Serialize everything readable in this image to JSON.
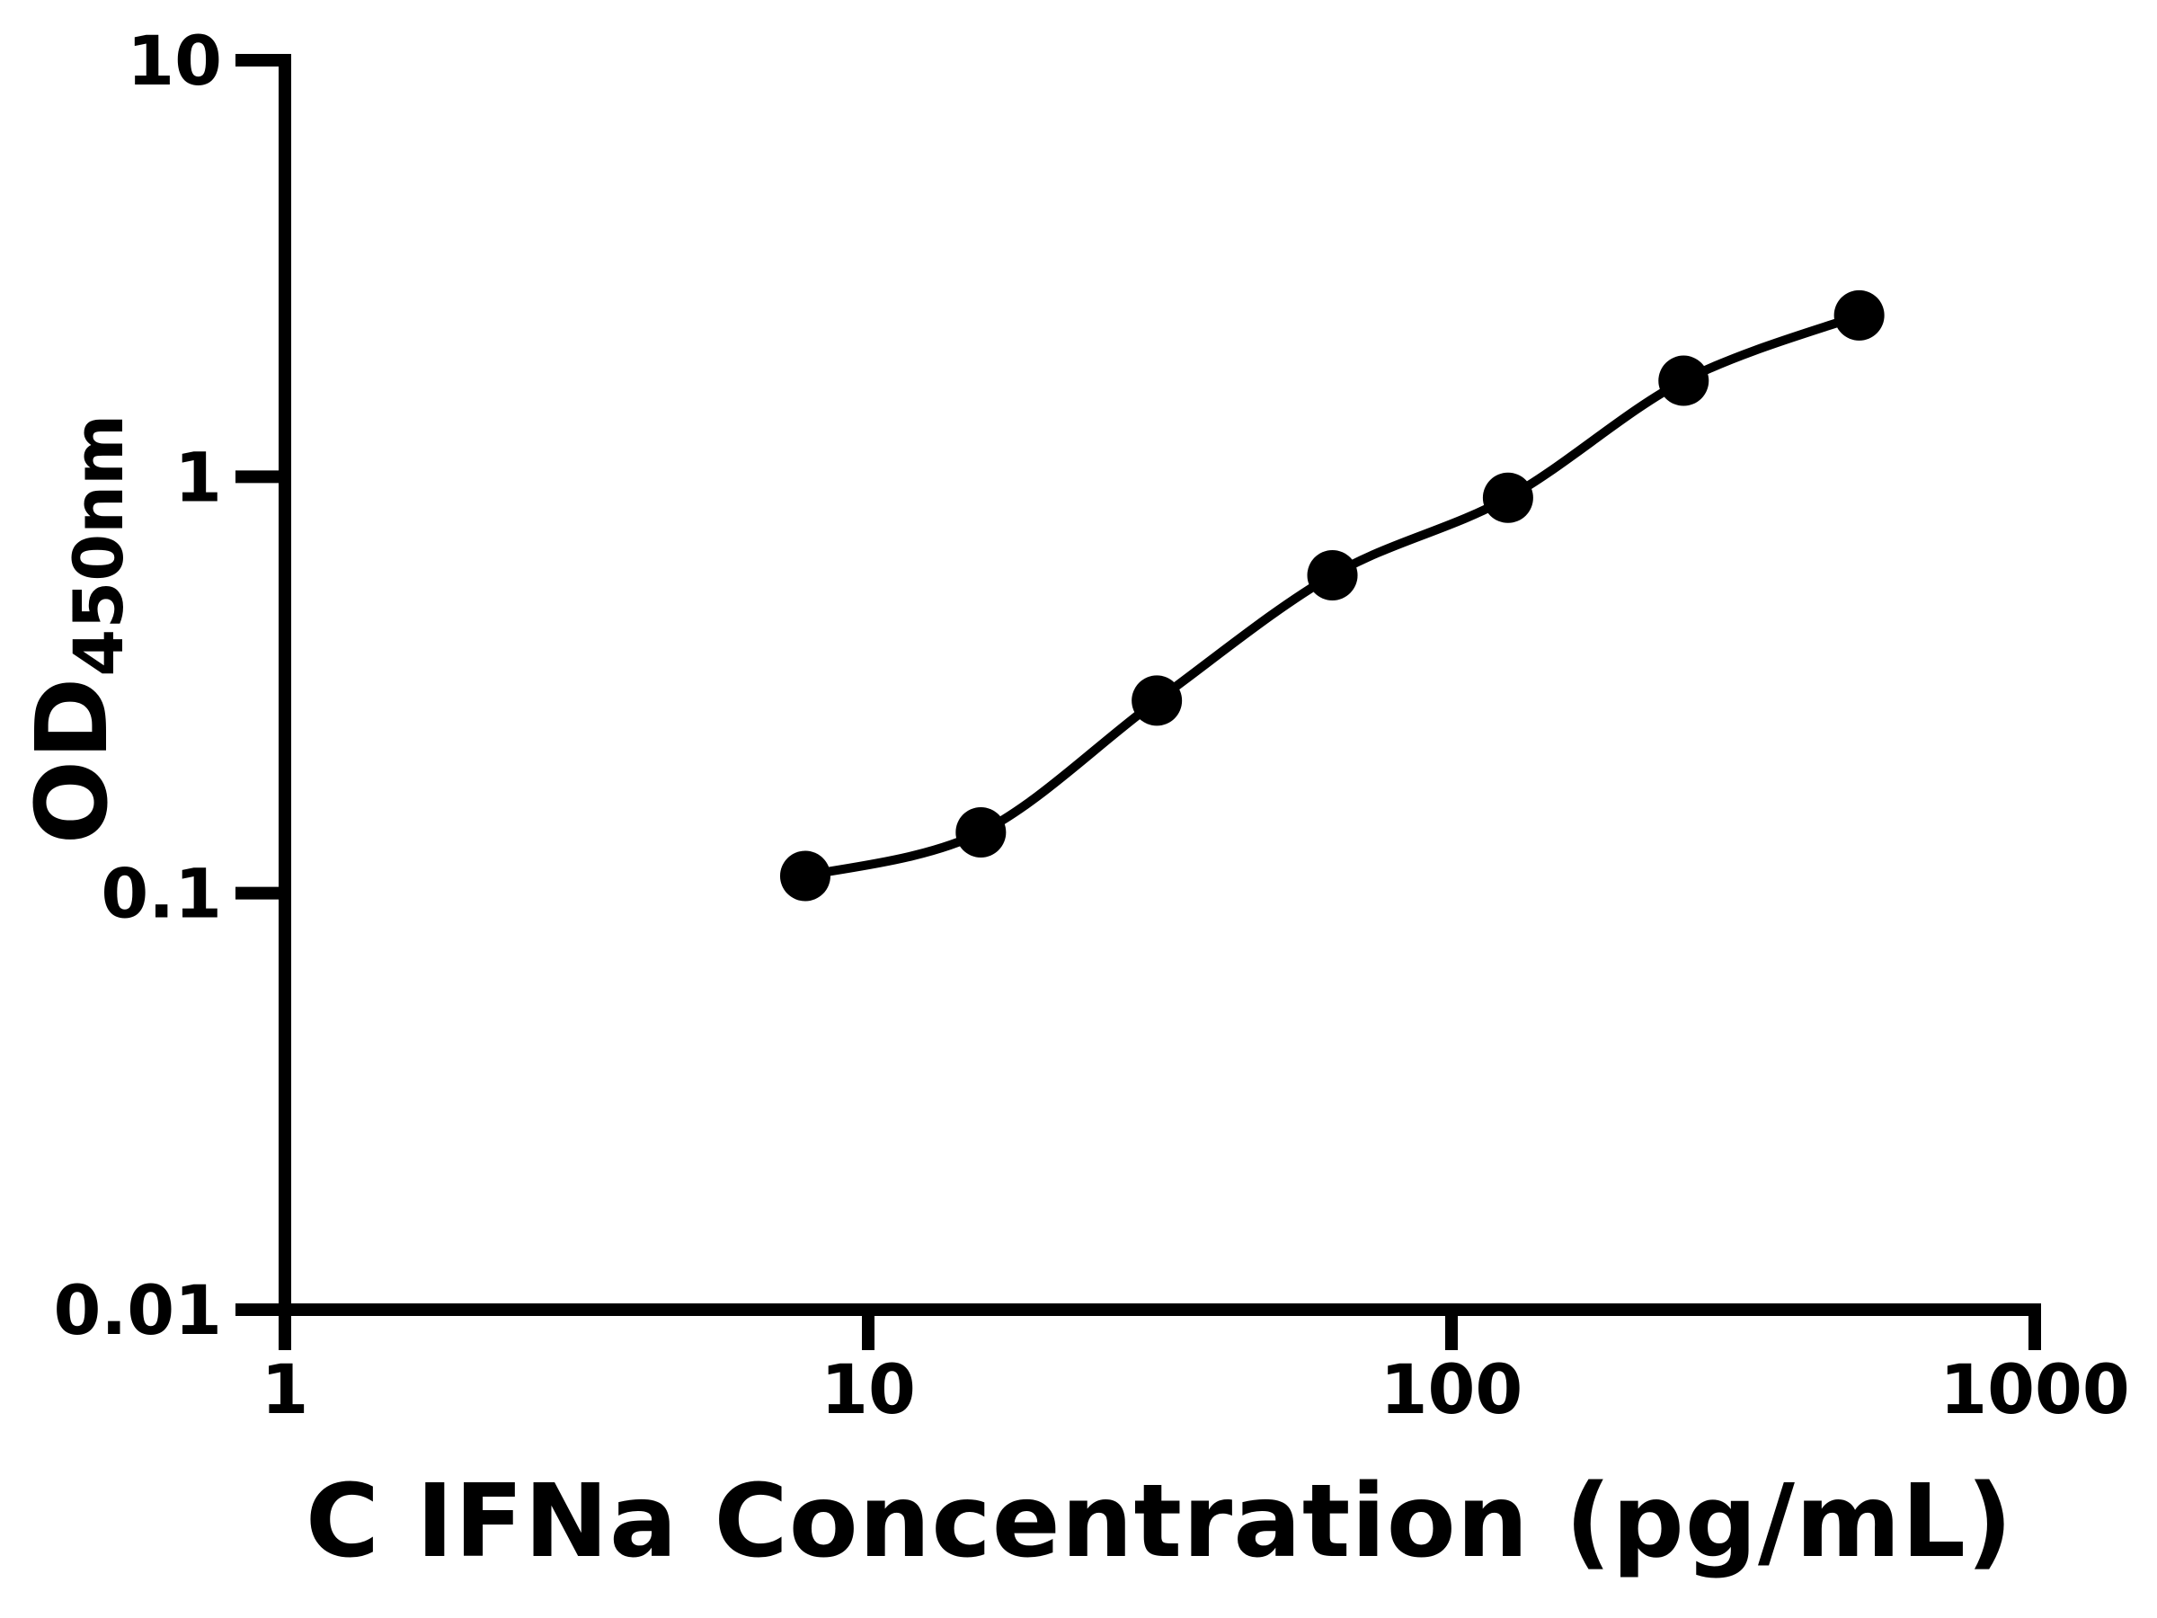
{
  "chart_data": {
    "type": "scatter",
    "subtype": "standard-curve-with-fitted-line",
    "title": "",
    "xlabel": "C IFNa Concentration (pg/mL)",
    "ylabel_main": "OD",
    "ylabel_sub": "450nm",
    "x_scale": "log",
    "y_scale": "log",
    "xlim": [
      1,
      1000
    ],
    "ylim": [
      0.01,
      10
    ],
    "xticks": [
      1,
      10,
      100,
      1000
    ],
    "xtick_labels": [
      "1",
      "10",
      "100",
      "1000"
    ],
    "yticks": [
      0.01,
      0.1,
      1,
      10
    ],
    "ytick_labels": [
      "0.01",
      "0.1",
      "1",
      "10"
    ],
    "grid": false,
    "legend": null,
    "x": [
      7.8,
      15.6,
      31.25,
      62.5,
      125,
      250,
      500
    ],
    "y": [
      0.11,
      0.14,
      0.29,
      0.58,
      0.89,
      1.7,
      2.44
    ],
    "marker": "filled-circle",
    "colors": {
      "axis": "#000000",
      "marker": "#000000",
      "curve": "#000000",
      "background": "#ffffff"
    }
  }
}
